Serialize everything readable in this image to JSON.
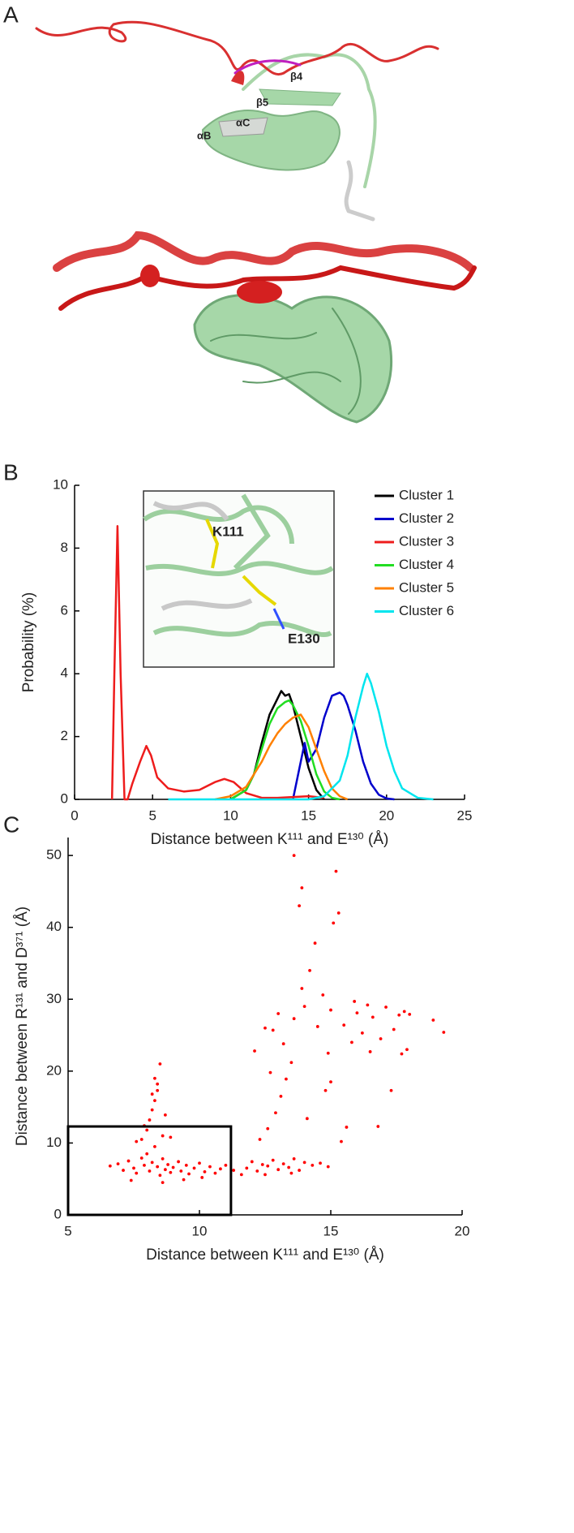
{
  "panel_labels": [
    "A",
    "B",
    "C"
  ],
  "structure_labels": [
    "β4",
    "β5",
    "αC",
    "αB"
  ],
  "inset_labels": [
    "K111",
    "E130"
  ],
  "chart_data": [
    {
      "type": "line",
      "xlabel": "Distance between K¹¹¹ and E¹³⁰ (Å)",
      "ylabel": "Probability (%)",
      "xlim": [
        0,
        25
      ],
      "xticks": [
        0,
        5,
        10,
        15,
        20,
        25
      ],
      "ylim": [
        0,
        10
      ],
      "yticks": [
        0,
        2,
        4,
        6,
        8,
        10
      ],
      "legend": "upper right",
      "series": [
        {
          "name": "Cluster 1",
          "color": "#000000",
          "x": [
            10,
            11,
            11.5,
            12,
            12.5,
            13,
            13.25,
            13.5,
            13.75,
            14,
            14.5,
            15,
            15.5,
            16
          ],
          "values": [
            0,
            0.3,
            0.8,
            1.8,
            2.7,
            3.2,
            3.45,
            3.3,
            3.35,
            3.0,
            2.0,
            1.0,
            0.3,
            0
          ]
        },
        {
          "name": "Cluster 2",
          "color": "#0000cc",
          "x": [
            14,
            14.5,
            14.75,
            15,
            15.5,
            16,
            16.5,
            17,
            17.25,
            17.5,
            18,
            18.5,
            19,
            19.5,
            20,
            20.5
          ],
          "values": [
            0,
            1.2,
            1.8,
            1.2,
            1.6,
            2.6,
            3.3,
            3.4,
            3.3,
            3.0,
            2.2,
            1.2,
            0.5,
            0.15,
            0.03,
            0
          ]
        },
        {
          "name": "Cluster 3",
          "color": "#ee1c1c",
          "x": [
            2.4,
            2.55,
            2.75,
            2.95,
            3.2,
            3.4,
            3.7,
            4.2,
            4.6,
            4.9,
            5.3,
            6,
            7,
            8,
            9,
            9.6,
            10.2,
            11,
            12,
            13,
            15,
            16
          ],
          "values": [
            0,
            4,
            8.7,
            4,
            0,
            0,
            0.5,
            1.2,
            1.7,
            1.4,
            0.7,
            0.35,
            0.25,
            0.3,
            0.55,
            0.65,
            0.55,
            0.2,
            0.05,
            0.05,
            0.1,
            0.05
          ]
        },
        {
          "name": "Cluster 4",
          "color": "#22dd22",
          "x": [
            10,
            11,
            11.5,
            12,
            12.5,
            13,
            13.5,
            13.75,
            14,
            14.5,
            15,
            15.5,
            16,
            16.5,
            17
          ],
          "values": [
            0,
            0.3,
            0.8,
            1.6,
            2.4,
            2.9,
            3.1,
            3.15,
            3.0,
            2.5,
            1.7,
            0.8,
            0.25,
            0.05,
            0
          ]
        },
        {
          "name": "Cluster 5",
          "color": "#ff8000",
          "x": [
            9,
            10,
            11,
            12,
            12.5,
            13,
            13.5,
            14,
            14.5,
            15,
            15.5,
            16,
            16.5,
            17,
            17.5
          ],
          "values": [
            0,
            0.1,
            0.4,
            1.2,
            1.7,
            2.1,
            2.4,
            2.6,
            2.7,
            2.3,
            1.6,
            0.9,
            0.35,
            0.1,
            0
          ]
        },
        {
          "name": "Cluster 6",
          "color": "#00e5ee",
          "x": [
            6,
            15,
            16,
            17,
            17.5,
            18,
            18.5,
            18.75,
            19,
            19.5,
            20,
            20.5,
            21,
            22,
            23
          ],
          "values": [
            0,
            0,
            0.1,
            0.6,
            1.4,
            2.6,
            3.6,
            4.0,
            3.7,
            2.8,
            1.7,
            0.9,
            0.35,
            0.05,
            0
          ]
        }
      ]
    },
    {
      "type": "scatter",
      "xlabel": "Distance between K¹¹¹ and E¹³⁰ (Å)",
      "ylabel": "Distance between R¹³¹ and D³⁷¹ (Å)",
      "xlim": [
        5,
        20
      ],
      "xticks": [
        5,
        10,
        15,
        20
      ],
      "ylim": [
        0,
        52.5
      ],
      "yticks": [
        0,
        10,
        20,
        30,
        40,
        50
      ],
      "color": "#ff0000",
      "highlight_box": {
        "xlim": [
          5,
          11.2
        ],
        "ylim": [
          0,
          12.3
        ]
      },
      "x": [
        6.6,
        6.9,
        7.1,
        7.3,
        7.5,
        7.6,
        7.8,
        7.9,
        8.0,
        8.1,
        8.2,
        8.3,
        8.4,
        8.5,
        8.6,
        8.7,
        8.8,
        8.9,
        9.0,
        9.2,
        9.3,
        9.5,
        9.6,
        9.8,
        10.0,
        10.2,
        10.4,
        10.6,
        10.8,
        11.0,
        11.3,
        11.6,
        7.4,
        8.6,
        9.4,
        10.1,
        7.8,
        8.0,
        8.1,
        8.2,
        8.3,
        8.4,
        8.3,
        8.5,
        7.9,
        8.6,
        8.2,
        8.7,
        7.6,
        8.9,
        8.4,
        11.8,
        12.0,
        12.2,
        12.4,
        12.6,
        12.8,
        13.0,
        13.2,
        13.4,
        13.6,
        13.8,
        14.0,
        14.3,
        14.6,
        14.9,
        12.5,
        13.5,
        12.3,
        12.6,
        12.9,
        13.1,
        13.3,
        13.5,
        13.2,
        12.8,
        13.6,
        14.0,
        13.9,
        14.2,
        14.4,
        13.8,
        13.9,
        13.6,
        15.2,
        15.3,
        15.1,
        14.7,
        14.5,
        14.9,
        15.0,
        12.1,
        12.5,
        13.0,
        14.8,
        14.1,
        15.6,
        15.4,
        15.0,
        12.7,
        15.5,
        15.8,
        16.0,
        16.2,
        16.5,
        16.6,
        16.9,
        17.1,
        17.3,
        17.4,
        17.6,
        17.8,
        17.9,
        18.0,
        18.9,
        19.3,
        16.8,
        15.9,
        17.7,
        16.4
      ],
      "values": [
        6.8,
        7.1,
        6.2,
        7.5,
        6.5,
        5.8,
        7.9,
        6.9,
        8.5,
        6.1,
        7.3,
        9.5,
        6.7,
        5.5,
        7.8,
        6.3,
        7.0,
        5.9,
        6.6,
        7.4,
        6.1,
        6.9,
        5.7,
        6.5,
        7.2,
        6.0,
        6.7,
        5.8,
        6.4,
        6.9,
        6.2,
        5.6,
        4.8,
        4.5,
        4.9,
        5.2,
        10.5,
        11.8,
        13.2,
        14.6,
        15.9,
        17.3,
        19.0,
        21.0,
        12.4,
        11.0,
        16.8,
        13.9,
        10.2,
        10.8,
        18.2,
        6.5,
        7.4,
        6.1,
        7.0,
        6.8,
        7.6,
        6.3,
        7.1,
        6.6,
        7.8,
        6.2,
        7.3,
        6.9,
        7.2,
        6.7,
        5.6,
        5.8,
        10.5,
        12.0,
        14.2,
        16.5,
        18.9,
        21.2,
        23.8,
        25.7,
        27.3,
        29.0,
        31.5,
        34.0,
        37.8,
        43.0,
        45.5,
        50.0,
        47.8,
        42.0,
        40.6,
        30.6,
        26.2,
        22.5,
        28.5,
        22.8,
        26.0,
        28.0,
        17.3,
        13.4,
        12.2,
        10.2,
        18.5,
        19.8,
        26.4,
        24.0,
        28.1,
        25.3,
        22.7,
        27.5,
        24.5,
        28.9,
        17.3,
        25.8,
        27.8,
        28.3,
        23.0,
        27.9,
        27.1,
        25.4,
        12.3,
        29.7,
        22.4,
        29.2
      ]
    }
  ]
}
